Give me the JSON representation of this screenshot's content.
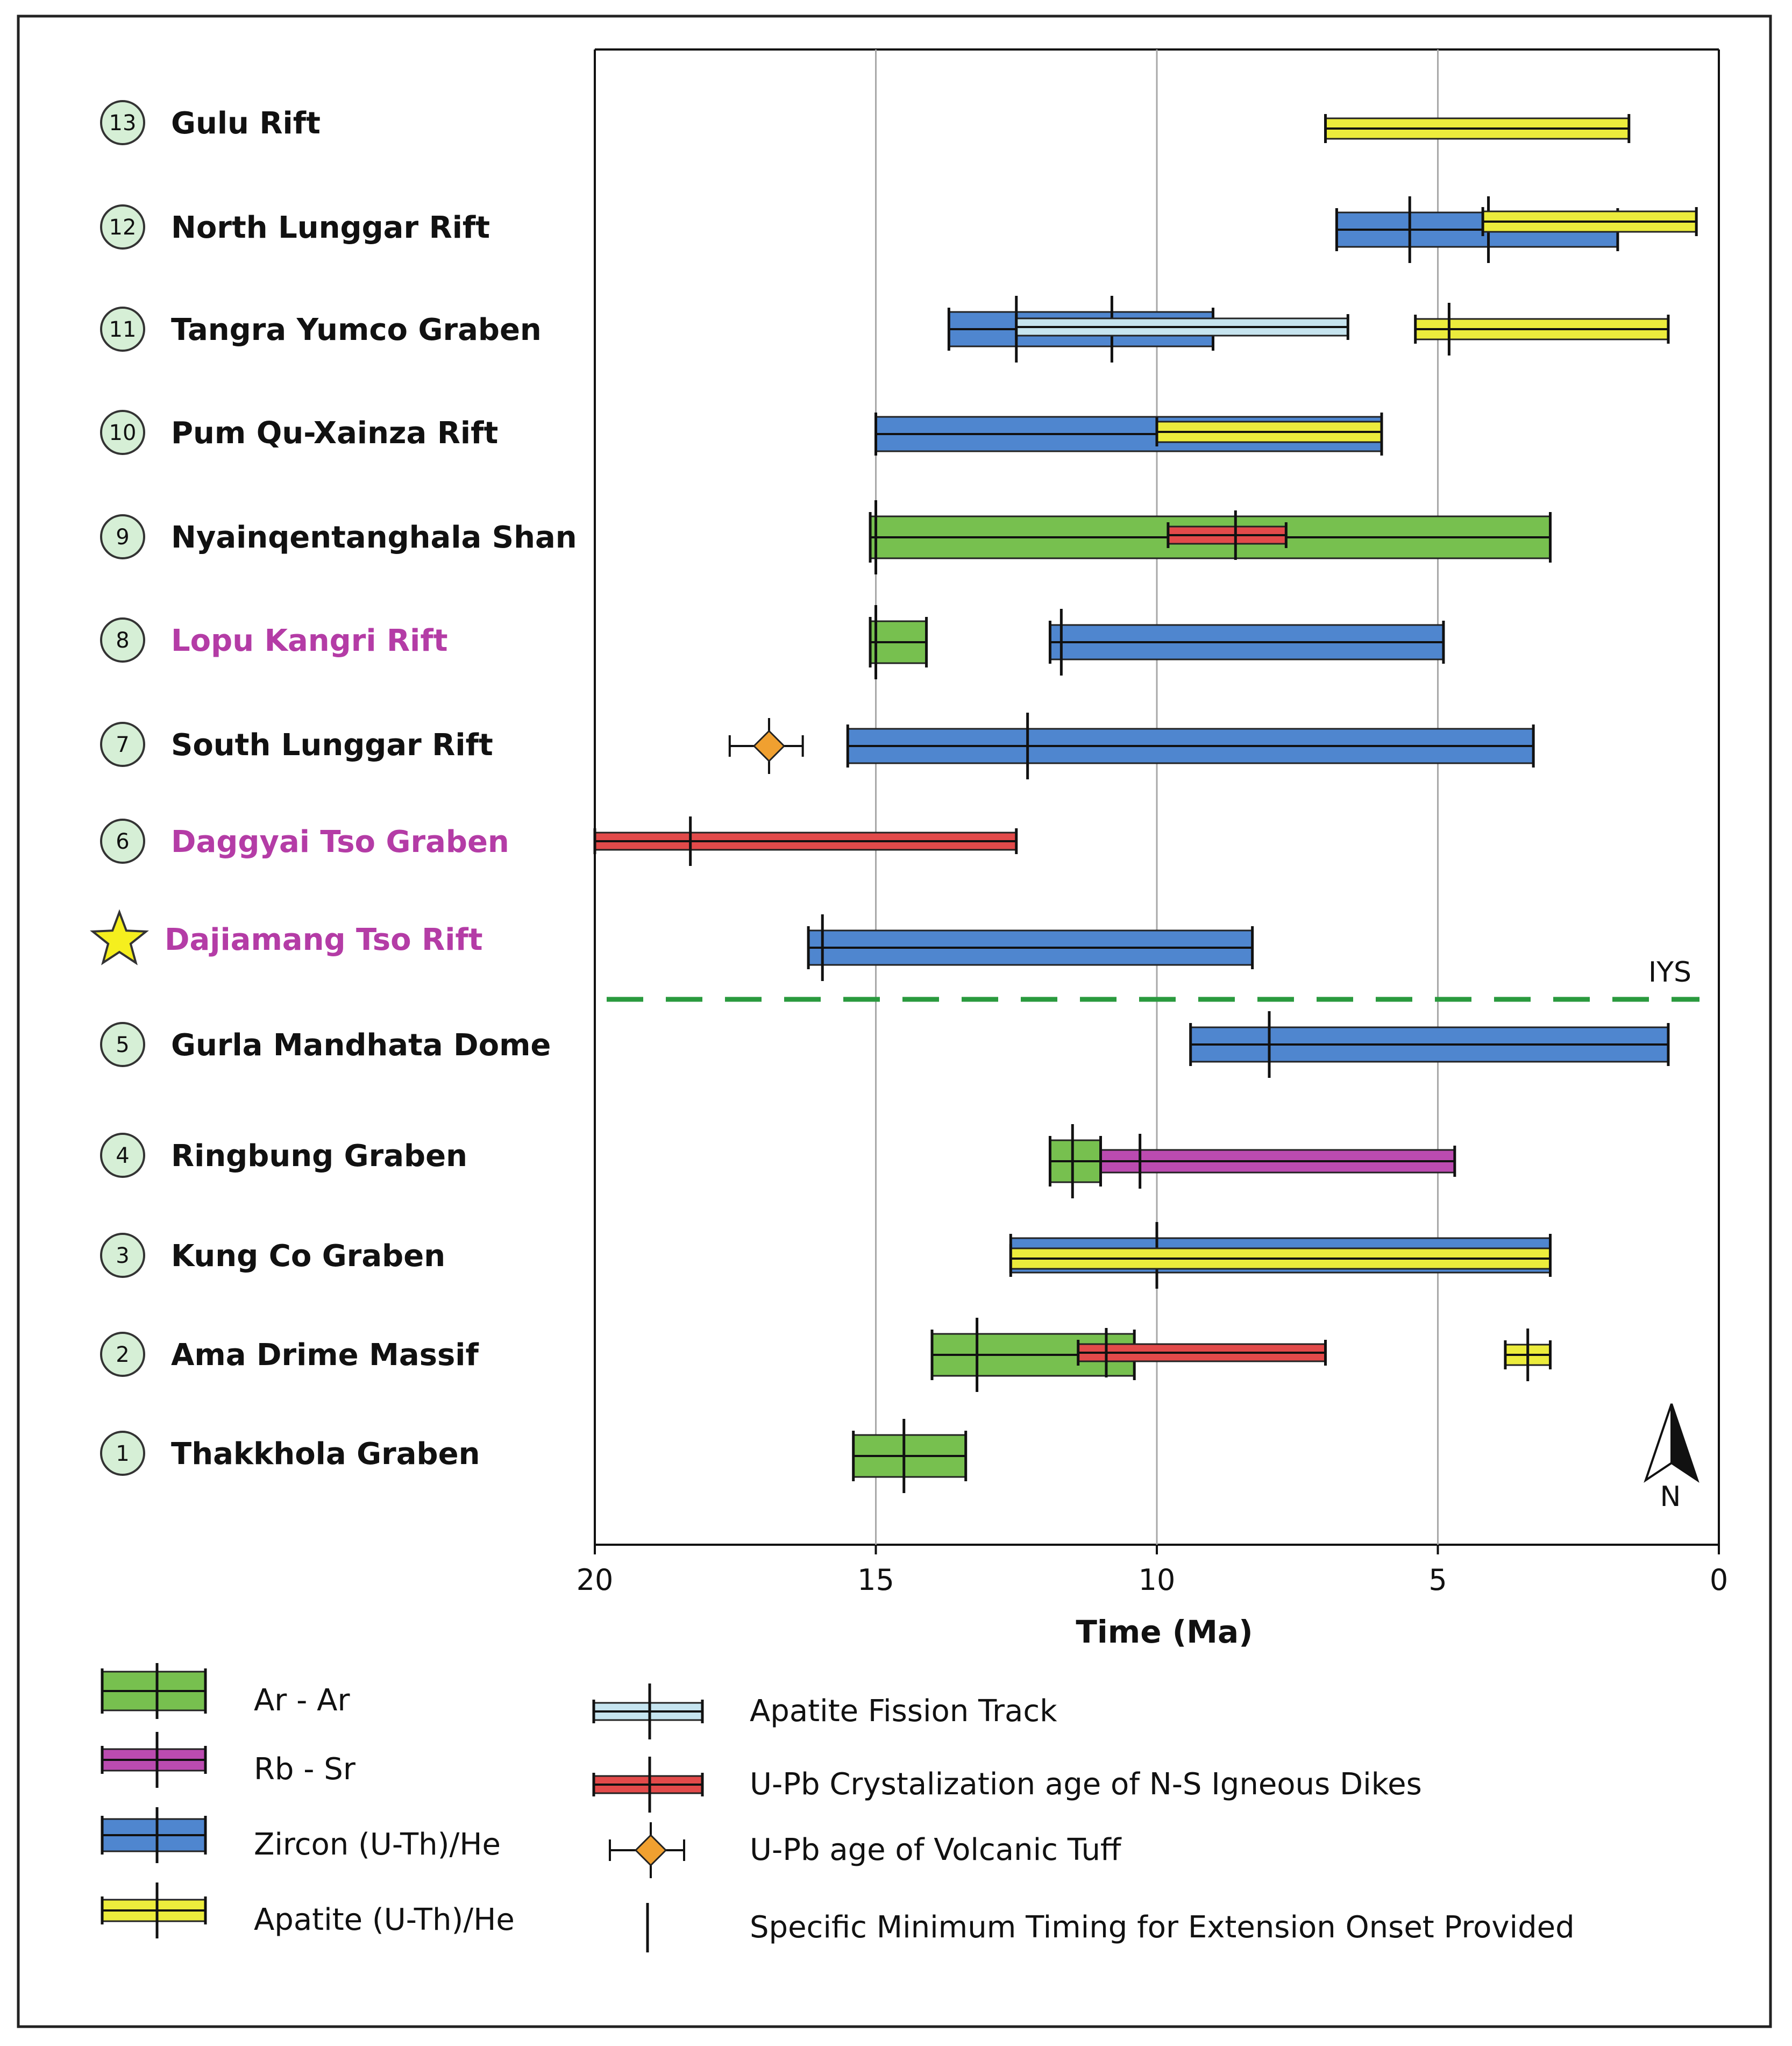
{
  "colors": {
    "ar_ar": "#77c04f",
    "rb_sr": "#bb4bb0",
    "zircon": "#4f86cf",
    "apatite_he": "#ecec3c",
    "apatite_ft": "#c6e4ef",
    "upb_dikes": "#e24a4a",
    "tuff": "#f0a030",
    "circle_fill": "#d6efd6",
    "iys_line": "#2a9a3e",
    "purple_text": "#b43ca6",
    "star": "#f5ef1e"
  },
  "chart_data": {
    "type": "range-bar",
    "xlabel": "Time (Ma)",
    "xlim": [
      20,
      0
    ],
    "xticks": [
      "20",
      "15",
      "10",
      "5",
      "0"
    ],
    "gridlines": [
      15,
      10,
      5
    ],
    "iys_label": "IYS",
    "north_label": "N",
    "rows": [
      {
        "id": "13",
        "label": "Gulu Rift",
        "purple": false,
        "marker": "circle",
        "bars": [
          {
            "method": "apatite_he",
            "from": 7.0,
            "to": 1.6,
            "ticks": []
          }
        ]
      },
      {
        "id": "12",
        "label": "North Lunggar Rift",
        "purple": false,
        "marker": "circle",
        "bars": [
          {
            "method": "zircon",
            "from": 6.8,
            "to": 1.8,
            "ticks": [
              5.5,
              4.1
            ]
          },
          {
            "method": "apatite_he",
            "from": 4.2,
            "to": 0.4,
            "ticks": []
          }
        ]
      },
      {
        "id": "11",
        "label": "Tangra Yumco Graben",
        "purple": false,
        "marker": "circle",
        "bars": [
          {
            "method": "zircon",
            "from": 13.7,
            "to": 9.0,
            "ticks": [
              12.5,
              10.8
            ]
          },
          {
            "method": "apatite_ft",
            "from": 12.5,
            "to": 6.6,
            "ticks": []
          },
          {
            "method": "apatite_he",
            "from": 5.4,
            "to": 0.9,
            "ticks": [
              4.8
            ]
          }
        ]
      },
      {
        "id": "10",
        "label": "Pum Qu-Xainza Rift",
        "purple": false,
        "marker": "circle",
        "bars": [
          {
            "method": "zircon",
            "from": 15.0,
            "to": 6.0,
            "ticks": []
          },
          {
            "method": "apatite_he",
            "from": 10.0,
            "to": 6.0,
            "ticks": []
          }
        ]
      },
      {
        "id": "9",
        "label": "Nyainqentanghala Shan",
        "purple": false,
        "marker": "circle",
        "bars": [
          {
            "method": "ar_ar",
            "from": 15.1,
            "to": 3.0,
            "ticks": [
              15.0
            ]
          },
          {
            "method": "upb_dikes",
            "from": 9.8,
            "to": 7.7,
            "ticks": [
              8.6
            ]
          }
        ]
      },
      {
        "id": "8",
        "label": "Lopu Kangri Rift",
        "purple": true,
        "marker": "circle",
        "bars": [
          {
            "method": "ar_ar",
            "from": 15.1,
            "to": 14.1,
            "ticks": [
              15.0
            ]
          },
          {
            "method": "zircon",
            "from": 11.9,
            "to": 4.9,
            "ticks": [
              11.7
            ]
          }
        ]
      },
      {
        "id": "7",
        "label": "South Lunggar Rift",
        "purple": false,
        "marker": "circle",
        "tuff": {
          "age": 16.9,
          "err_from": 17.6,
          "err_to": 16.3
        },
        "bars": [
          {
            "method": "zircon",
            "from": 15.5,
            "to": 3.3,
            "ticks": [
              12.3
            ]
          }
        ]
      },
      {
        "id": "6",
        "label": "Daggyai Tso Graben",
        "purple": true,
        "marker": "circle",
        "bars": [
          {
            "method": "upb_dikes",
            "from": 20.0,
            "to": 12.5,
            "ticks": [
              18.3
            ]
          }
        ]
      },
      {
        "id": "",
        "label": "Dajiamang Tso Rift",
        "purple": true,
        "marker": "star",
        "bars": [
          {
            "method": "zircon",
            "from": 16.2,
            "to": 8.3,
            "ticks": [
              15.95
            ]
          }
        ]
      },
      {
        "id": "5",
        "label": "Gurla Mandhata Dome",
        "purple": false,
        "marker": "circle",
        "bars": [
          {
            "method": "zircon",
            "from": 9.4,
            "to": 0.9,
            "ticks": [
              8.0
            ]
          }
        ]
      },
      {
        "id": "4",
        "label": "Ringbung Graben",
        "purple": false,
        "marker": "circle",
        "bars": [
          {
            "method": "ar_ar",
            "from": 11.9,
            "to": 11.0,
            "ticks": [
              11.5
            ]
          },
          {
            "method": "rb_sr",
            "from": 11.0,
            "to": 4.7,
            "ticks": [
              10.3
            ]
          }
        ]
      },
      {
        "id": "3",
        "label": "Kung Co Graben",
        "purple": false,
        "marker": "circle",
        "bars": [
          {
            "method": "zircon",
            "from": 12.6,
            "to": 3.0,
            "ticks": [
              10.0
            ]
          },
          {
            "method": "apatite_he",
            "from": 12.6,
            "to": 3.0,
            "ticks": []
          }
        ]
      },
      {
        "id": "2",
        "label": "Ama Drime Massif",
        "purple": false,
        "marker": "circle",
        "bars": [
          {
            "method": "ar_ar",
            "from": 14.0,
            "to": 10.4,
            "ticks": [
              13.2
            ]
          },
          {
            "method": "upb_dikes",
            "from": 11.4,
            "to": 7.0,
            "ticks": [
              10.9
            ]
          },
          {
            "method": "apatite_he",
            "from": 3.8,
            "to": 3.0,
            "ticks": [
              3.4
            ]
          }
        ]
      },
      {
        "id": "1",
        "label": "Thakkhola Graben",
        "purple": false,
        "marker": "circle",
        "bars": [
          {
            "method": "ar_ar",
            "from": 15.4,
            "to": 13.4,
            "ticks": [
              14.5
            ]
          }
        ]
      }
    ]
  },
  "legend": {
    "left": [
      {
        "method": "ar_ar",
        "label": "Ar - Ar"
      },
      {
        "method": "rb_sr",
        "label": "Rb - Sr"
      },
      {
        "method": "zircon",
        "label": "Zircon (U-Th)/He"
      },
      {
        "method": "apatite_he",
        "label": "Apatite (U-Th)/He"
      }
    ],
    "right": [
      {
        "method": "apatite_ft",
        "label": "Apatite Fission Track"
      },
      {
        "method": "upb_dikes",
        "label": "U-Pb Crystalization age of N-S Igneous Dikes"
      },
      {
        "method": "tuff",
        "label": "U-Pb age of Volcanic Tuff"
      },
      {
        "method": "tickmark",
        "label": "Specific Minimum Timing for Extension Onset Provided"
      }
    ]
  }
}
